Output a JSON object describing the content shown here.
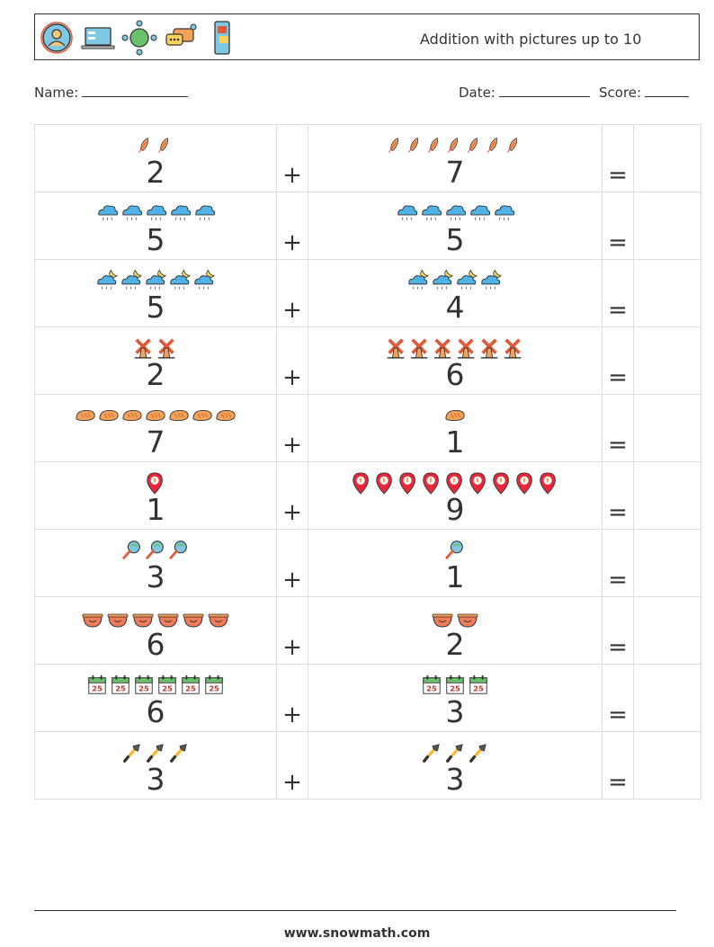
{
  "header": {
    "title": "Addition with pictures up to 10",
    "icons": [
      "user-target-icon",
      "laptop-icon",
      "network-globe-icon",
      "chat-bubbles-icon",
      "mobile-phone-icon"
    ]
  },
  "meta": {
    "name_label": "Name:",
    "date_label": "Date:",
    "score_label": "Score:"
  },
  "operators": {
    "plus": "+",
    "equals": "="
  },
  "rows": [
    {
      "left": 2,
      "right": 7,
      "icon": "feather-icon"
    },
    {
      "left": 5,
      "right": 5,
      "icon": "rain-cloud-icon"
    },
    {
      "left": 5,
      "right": 4,
      "icon": "night-rain-icon"
    },
    {
      "left": 2,
      "right": 6,
      "icon": "windmill-icon"
    },
    {
      "left": 7,
      "right": 1,
      "icon": "bread-icon"
    },
    {
      "left": 1,
      "right": 9,
      "icon": "location-pin-icon"
    },
    {
      "left": 3,
      "right": 1,
      "icon": "magnifier-icon"
    },
    {
      "left": 6,
      "right": 2,
      "icon": "pot-icon"
    },
    {
      "left": 6,
      "right": 3,
      "icon": "calendar-icon"
    },
    {
      "left": 3,
      "right": 3,
      "icon": "wrench-icon"
    }
  ],
  "calendar_day": "25",
  "footer": {
    "site": "www.snowmath.com"
  }
}
